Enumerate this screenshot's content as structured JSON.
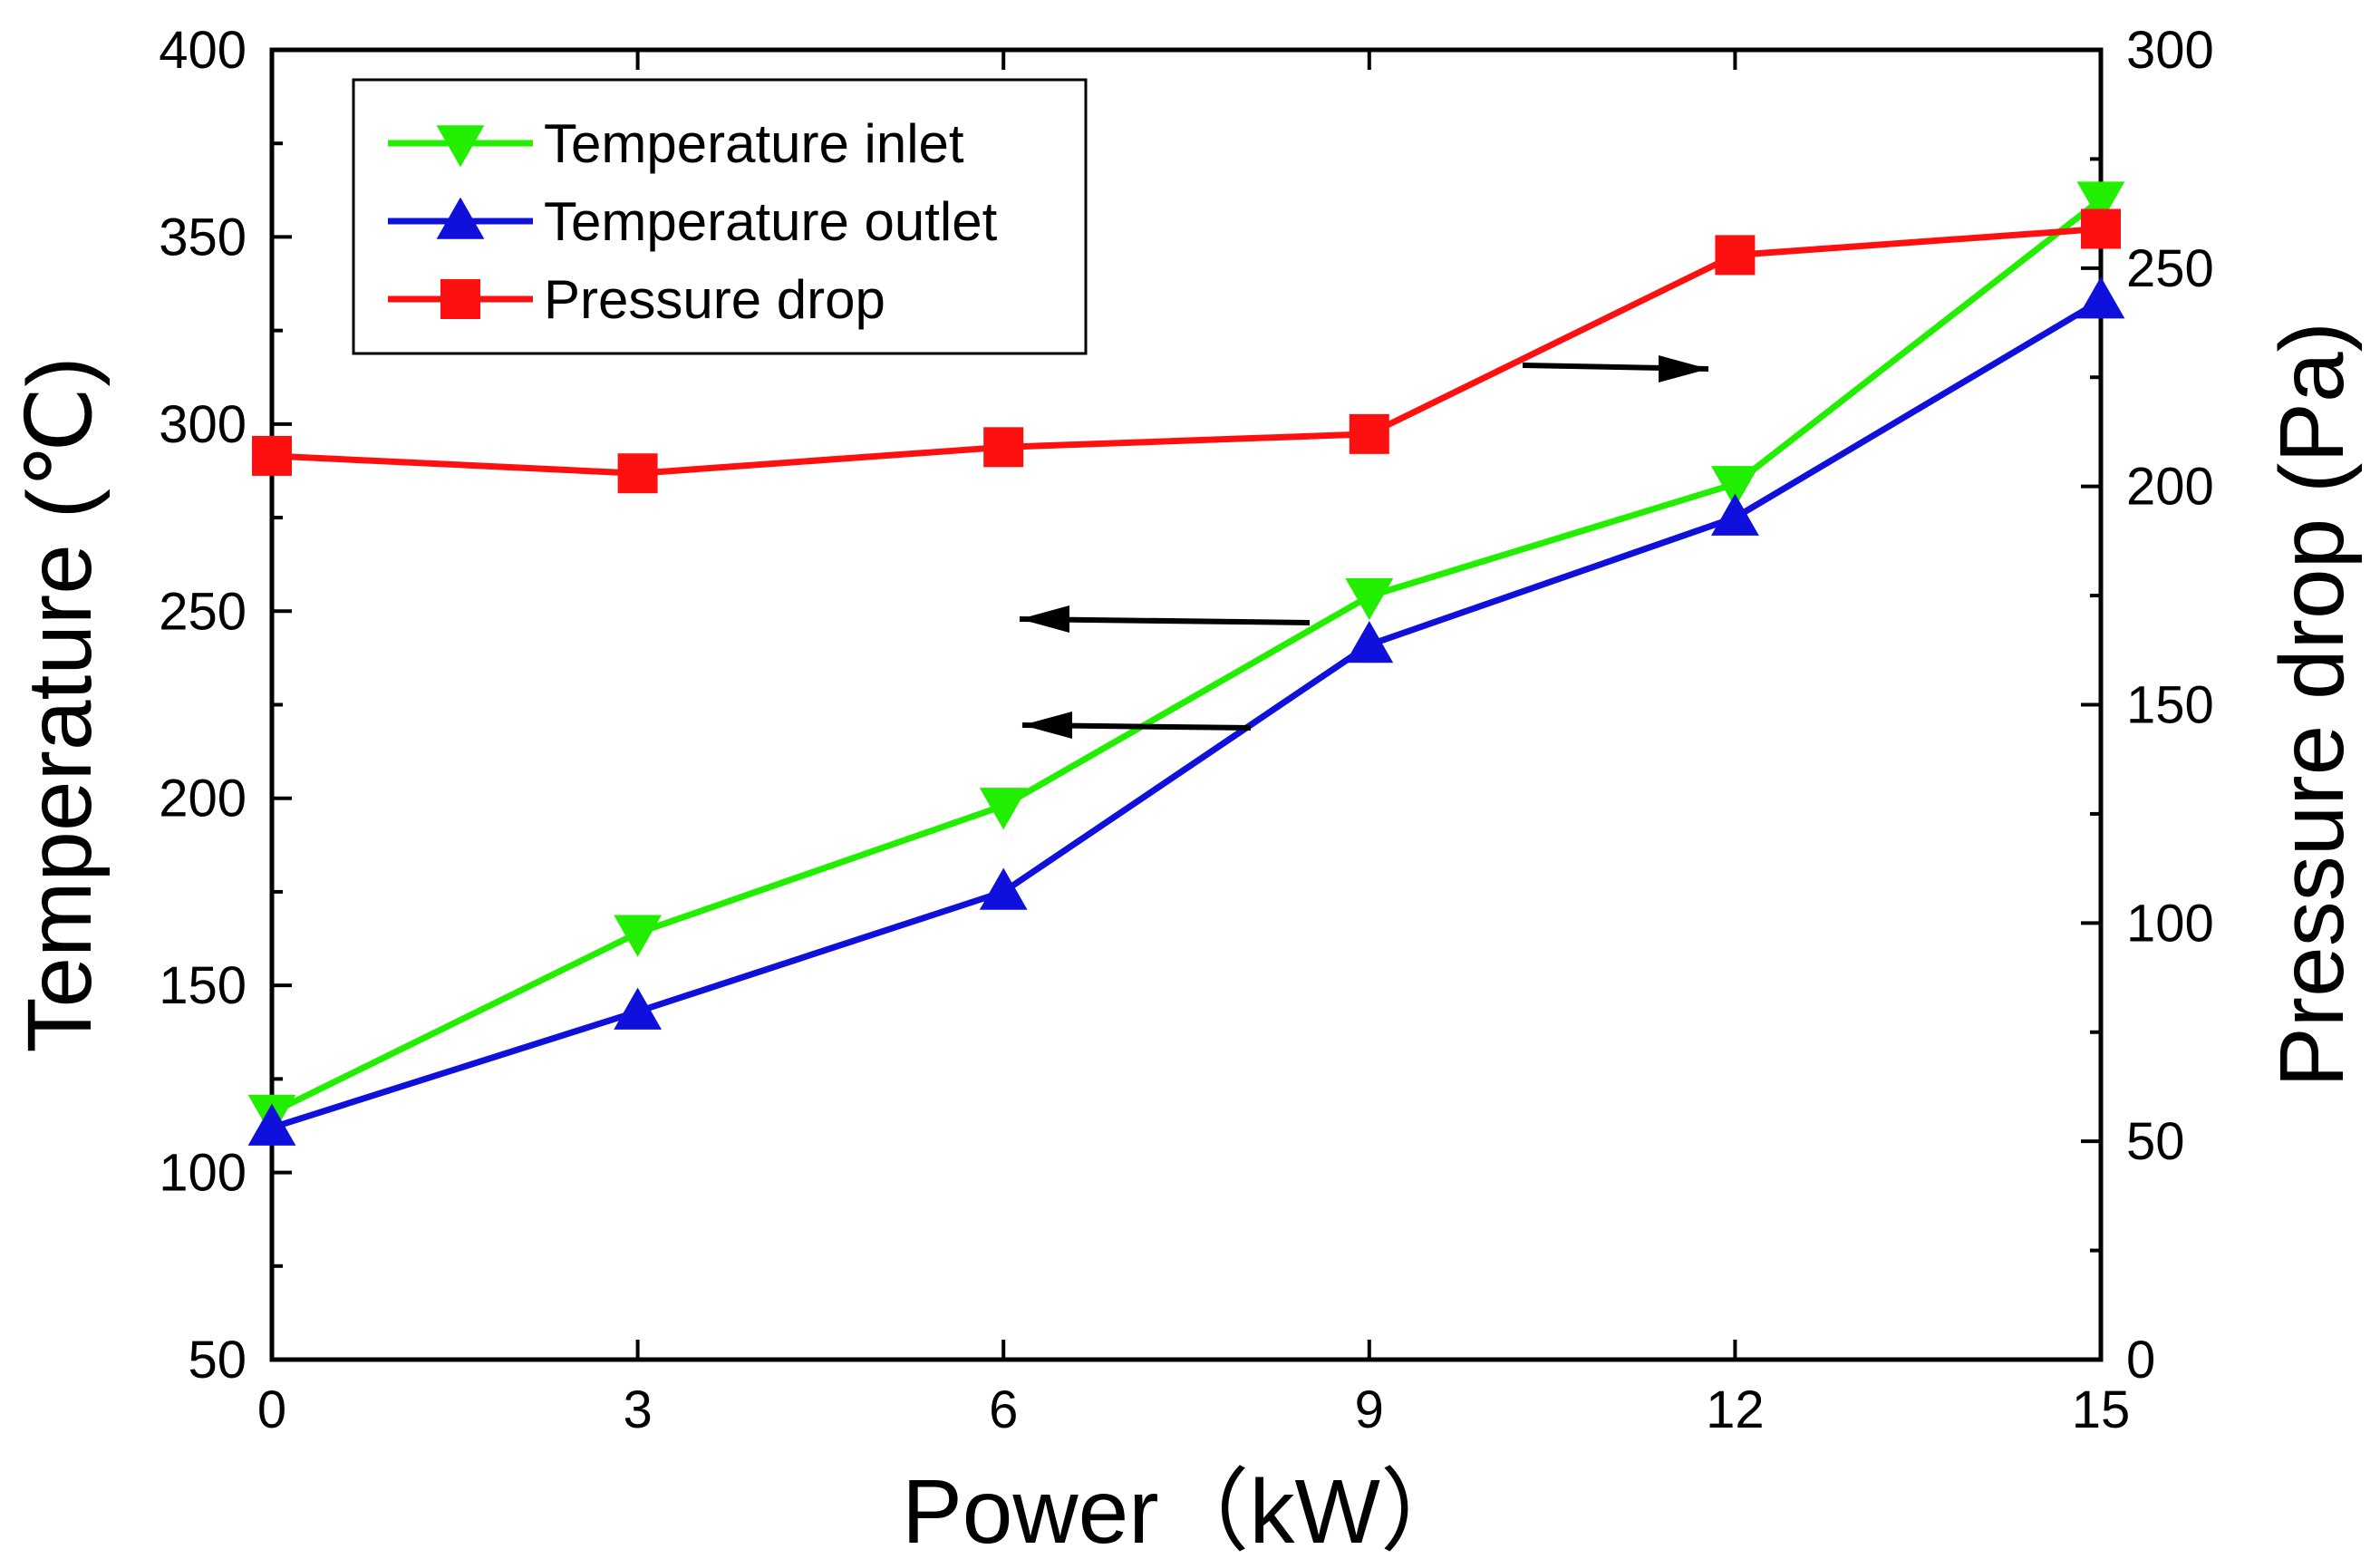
{
  "chart_data": {
    "type": "line",
    "title": "",
    "xlabel": "Power（kW）",
    "ylabel_left": "Temperature (℃)",
    "ylabel_right": "Pressure drop (Pa)",
    "x_ticks": [
      "0",
      "3",
      "6",
      "9",
      "12",
      "15"
    ],
    "y_left_ticks": [
      "50",
      "100",
      "150",
      "200",
      "250",
      "300",
      "350",
      "400"
    ],
    "y_right_ticks": [
      "0",
      "50",
      "100",
      "150",
      "200",
      "250",
      "300"
    ],
    "xlim": [
      0,
      15
    ],
    "ylim_left": [
      50,
      400
    ],
    "ylim_right": [
      0,
      300
    ],
    "x": [
      0,
      3,
      6,
      9,
      12,
      15
    ],
    "series": [
      {
        "name": "Temperature inlet",
        "axis": "left",
        "color": "#22ee00",
        "marker": "triangle-down",
        "values": [
          116,
          164,
          198,
          254,
          284,
          360
        ]
      },
      {
        "name": "Temperature outlet",
        "axis": "left",
        "color": "#1010dd",
        "marker": "triangle-up",
        "values": [
          112,
          143,
          175,
          241,
          275,
          333
        ]
      },
      {
        "name": "Pressure drop",
        "axis": "right",
        "color": "#ff1010",
        "marker": "square",
        "values": [
          207,
          203,
          209,
          212,
          253,
          259
        ]
      }
    ],
    "legend_position": "top-left",
    "annotations": [
      {
        "type": "arrow",
        "direction": "right",
        "points_to": "Pressure drop"
      },
      {
        "type": "arrow",
        "direction": "left",
        "points_to": "Temperature inlet"
      },
      {
        "type": "arrow",
        "direction": "left",
        "points_to": "Temperature outlet"
      }
    ]
  }
}
